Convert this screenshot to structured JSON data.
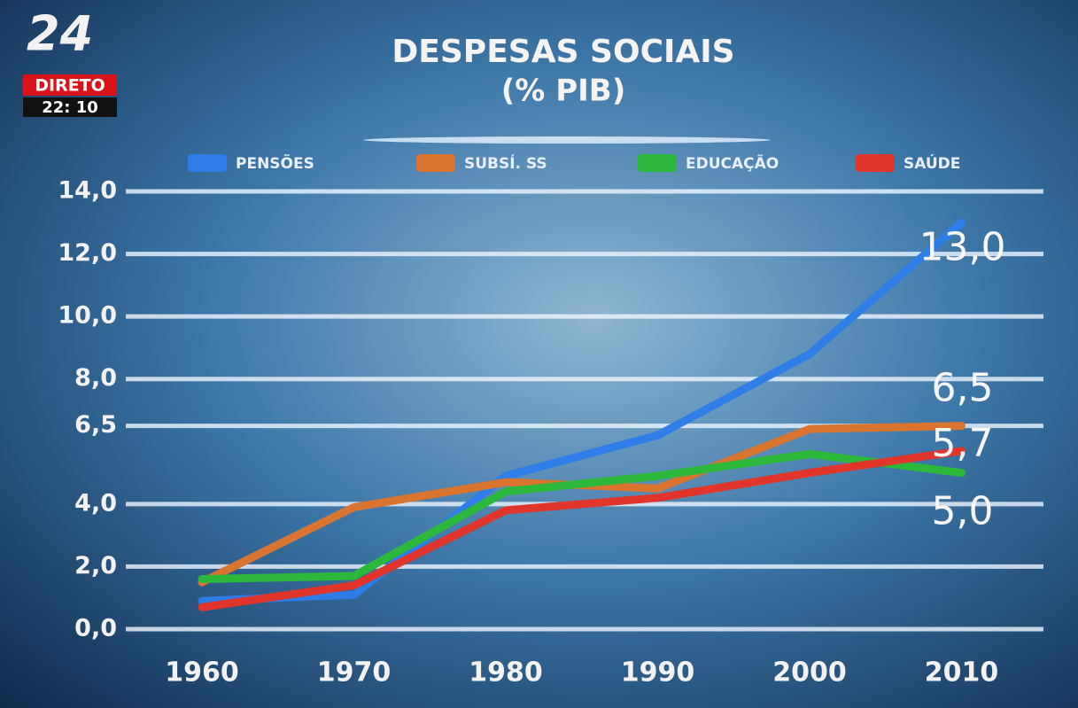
{
  "overlay": {
    "channel": "24",
    "live": "DIRETO",
    "clock": "22: 10"
  },
  "chart_data": {
    "type": "line",
    "title": "DESPESAS SOCIAIS",
    "subtitle": "(% PIB)",
    "categories": [
      "1960",
      "1970",
      "1980",
      "1990",
      "2000",
      "2010"
    ],
    "series": [
      {
        "name": "PENSÕES",
        "color": "#2f7de8",
        "values": [
          0.9,
          1.1,
          4.9,
          6.2,
          8.8,
          13.0
        ],
        "value_labels": [
          null,
          null,
          null,
          null,
          null,
          "13,0"
        ]
      },
      {
        "name": "SUBSÍ. SS",
        "color": "#d9752e",
        "values": [
          1.5,
          3.9,
          4.7,
          4.5,
          6.4,
          6.5
        ],
        "value_labels": [
          null,
          null,
          null,
          null,
          null,
          "6,5"
        ]
      },
      {
        "name": "EDUCAÇÃO",
        "color": "#2cb83a",
        "values": [
          1.6,
          1.7,
          4.4,
          4.9,
          5.6,
          5.0
        ],
        "value_labels": [
          null,
          null,
          null,
          null,
          null,
          "5,0"
        ]
      },
      {
        "name": "SAÚDE",
        "color": "#e0352a",
        "values": [
          0.7,
          1.4,
          3.8,
          4.2,
          5.0,
          5.7
        ],
        "value_labels": [
          null,
          null,
          null,
          null,
          null,
          "5,7"
        ]
      }
    ],
    "ylim": [
      0,
      14
    ],
    "yticks": [
      {
        "value": 0,
        "label": "0,0"
      },
      {
        "value": 2,
        "label": "2,0"
      },
      {
        "value": 4,
        "label": "4,0"
      },
      {
        "value": 6.5,
        "label": "6,5"
      },
      {
        "value": 8,
        "label": "8,0"
      },
      {
        "value": 10,
        "label": "10,0"
      },
      {
        "value": 12,
        "label": "12,0"
      },
      {
        "value": 14,
        "label": "14,0"
      }
    ],
    "grid": true,
    "legend": "top"
  }
}
